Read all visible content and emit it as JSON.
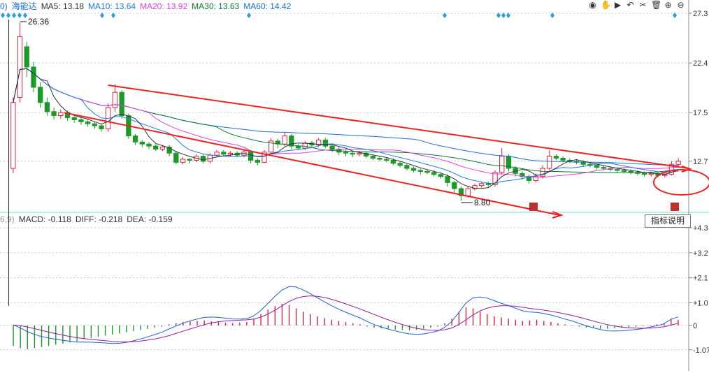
{
  "header": {
    "prefix": "0)",
    "stock_name": "海能达",
    "ma": [
      {
        "label": "MA5: 13.18",
        "color": "#333333"
      },
      {
        "label": "MA10: 13.64",
        "color": "#1a7ae8"
      },
      {
        "label": "MA20: 13.92",
        "color": "#e040e0"
      },
      {
        "label": "MA30: 13.63",
        "color": "#0a7a32"
      },
      {
        "label": "MA60: 14.42",
        "color": "#1a6fd6"
      }
    ],
    "toolbar": [
      {
        "name": "eye-icon",
        "glyph": "◉"
      },
      {
        "name": "hand-icon",
        "glyph": "✋"
      },
      {
        "name": "play-icon",
        "glyph": "▶"
      },
      {
        "name": "undo-icon",
        "glyph": "↶"
      },
      {
        "name": "scissors-icon",
        "glyph": "✂"
      },
      {
        "name": "trash-icon",
        "glyph": "🗑"
      },
      {
        "name": "zoom-in-icon",
        "glyph": "⊕"
      },
      {
        "name": "zoom-out-icon",
        "glyph": "⊖"
      }
    ]
  },
  "macd_header": {
    "prefix": "6,9)",
    "items": [
      {
        "label": "MACD: -0.118",
        "color": "#333333"
      },
      {
        "label": "DIFF: -0.218",
        "color": "#333333"
      },
      {
        "label": "DEA: -0.159",
        "color": "#333333"
      }
    ]
  },
  "tooltip": "指标说明",
  "chart_data": {
    "type": "candlestick",
    "price_axis": {
      "ticks": [
        "27.3",
        "22.4",
        "17.5",
        "12.7"
      ],
      "values": [
        27.3,
        22.4,
        17.5,
        12.7
      ],
      "range": [
        7.8,
        27.3
      ]
    },
    "macd_axis": {
      "ticks": [
        "+4.3",
        "+3.2",
        "+2.1",
        "+1.0",
        "0",
        "-1.07"
      ],
      "values": [
        4.3,
        3.2,
        2.1,
        1.0,
        0,
        -1.07
      ],
      "range": [
        -1.6,
        4.3
      ]
    },
    "annotations": {
      "high_label": "26.36",
      "low_label": "8.80"
    },
    "diamond_markers_x": [
      4,
      12,
      20,
      28,
      36,
      146,
      162,
      356,
      636,
      713,
      720,
      727,
      790,
      965
    ],
    "candles": [
      [
        12.0,
        18.5,
        11.5,
        19.0
      ],
      [
        19.0,
        25.0,
        18.5,
        26.36
      ],
      [
        24.0,
        22.0,
        21.0,
        24.5
      ],
      [
        22.0,
        20.0,
        19.5,
        22.5
      ],
      [
        20.0,
        18.5,
        18.0,
        20.5
      ],
      [
        18.5,
        17.6,
        17.2,
        19.0
      ],
      [
        17.6,
        17.2,
        16.8,
        18.0
      ],
      [
        17.2,
        17.5,
        16.9,
        17.8
      ],
      [
        17.5,
        17.0,
        16.7,
        17.7
      ],
      [
        17.0,
        16.8,
        16.5,
        17.2
      ],
      [
        16.8,
        16.6,
        16.3,
        17.0
      ],
      [
        16.6,
        16.4,
        16.1,
        16.8
      ],
      [
        16.4,
        16.2,
        15.9,
        16.6
      ],
      [
        16.2,
        15.9,
        15.6,
        16.4
      ],
      [
        15.9,
        18.0,
        15.6,
        18.4
      ],
      [
        18.0,
        19.5,
        17.6,
        20.3
      ],
      [
        19.5,
        17.2,
        16.9,
        19.7
      ],
      [
        17.2,
        15.2,
        14.9,
        17.4
      ],
      [
        15.2,
        14.6,
        14.3,
        15.4
      ],
      [
        14.6,
        14.4,
        14.1,
        14.8
      ],
      [
        14.4,
        14.2,
        13.9,
        14.6
      ],
      [
        14.2,
        13.9,
        13.7,
        14.4
      ],
      [
        13.9,
        14.1,
        13.7,
        14.3
      ],
      [
        14.1,
        13.5,
        13.2,
        14.3
      ],
      [
        13.5,
        12.6,
        12.4,
        13.7
      ],
      [
        12.6,
        12.9,
        12.4,
        13.1
      ],
      [
        12.9,
        12.8,
        12.5,
        13.0
      ],
      [
        12.8,
        13.2,
        12.6,
        13.4
      ],
      [
        13.2,
        12.7,
        12.5,
        13.4
      ],
      [
        12.7,
        13.3,
        12.5,
        13.5
      ],
      [
        13.3,
        13.6,
        13.1,
        13.8
      ],
      [
        13.6,
        13.4,
        13.2,
        13.8
      ],
      [
        13.4,
        13.5,
        13.2,
        13.7
      ],
      [
        13.5,
        13.3,
        13.1,
        13.7
      ],
      [
        13.3,
        13.6,
        13.1,
        13.8
      ],
      [
        13.6,
        12.8,
        12.5,
        13.8
      ],
      [
        12.8,
        12.6,
        12.3,
        13.0
      ],
      [
        12.6,
        13.6,
        12.5,
        13.8
      ],
      [
        13.6,
        14.7,
        13.4,
        15.0
      ],
      [
        14.7,
        14.4,
        14.0,
        14.9
      ],
      [
        14.4,
        15.2,
        14.2,
        15.6
      ],
      [
        15.2,
        14.2,
        13.9,
        15.4
      ],
      [
        14.2,
        14.0,
        13.8,
        14.4
      ],
      [
        14.0,
        14.5,
        13.8,
        14.7
      ],
      [
        14.5,
        14.3,
        14.0,
        14.7
      ],
      [
        14.3,
        14.8,
        14.1,
        15.0
      ],
      [
        14.8,
        14.2,
        14.0,
        15.0
      ],
      [
        14.2,
        13.9,
        13.6,
        14.4
      ],
      [
        13.9,
        13.6,
        13.3,
        14.1
      ],
      [
        13.6,
        13.5,
        13.2,
        13.8
      ],
      [
        13.5,
        13.4,
        13.1,
        13.7
      ],
      [
        13.4,
        13.5,
        13.2,
        13.7
      ],
      [
        13.5,
        13.2,
        13.0,
        13.7
      ],
      [
        13.2,
        13.0,
        12.8,
        13.4
      ],
      [
        13.0,
        12.9,
        12.7,
        13.2
      ],
      [
        12.9,
        12.8,
        12.6,
        13.1
      ],
      [
        12.8,
        12.5,
        12.3,
        13.0
      ],
      [
        12.5,
        12.3,
        12.1,
        12.7
      ],
      [
        12.3,
        12.0,
        11.8,
        12.5
      ],
      [
        12.0,
        11.8,
        11.6,
        12.2
      ],
      [
        11.8,
        11.7,
        11.4,
        12.0
      ],
      [
        11.7,
        11.6,
        11.4,
        11.9
      ],
      [
        11.6,
        11.4,
        11.2,
        11.8
      ],
      [
        11.4,
        11.2,
        11.0,
        11.6
      ],
      [
        11.2,
        10.6,
        10.2,
        11.4
      ],
      [
        10.6,
        10.0,
        9.6,
        10.8
      ],
      [
        10.0,
        9.3,
        8.8,
        10.2
      ],
      [
        9.3,
        10.0,
        9.1,
        10.3
      ],
      [
        10.0,
        10.3,
        9.8,
        10.5
      ],
      [
        10.3,
        10.5,
        10.1,
        10.7
      ],
      [
        10.5,
        10.4,
        10.2,
        10.7
      ],
      [
        10.4,
        11.6,
        10.2,
        11.8
      ],
      [
        11.6,
        13.2,
        11.4,
        14.0
      ],
      [
        13.2,
        12.0,
        11.7,
        13.4
      ],
      [
        12.0,
        11.5,
        11.2,
        12.2
      ],
      [
        11.5,
        11.2,
        10.9,
        11.7
      ],
      [
        11.2,
        10.8,
        10.5,
        11.4
      ],
      [
        10.8,
        11.2,
        10.6,
        11.5
      ],
      [
        11.2,
        12.0,
        11.0,
        12.3
      ],
      [
        12.0,
        13.2,
        11.8,
        13.8
      ],
      [
        13.2,
        13.0,
        12.8,
        13.4
      ],
      [
        13.0,
        12.8,
        12.6,
        13.2
      ],
      [
        12.8,
        12.7,
        12.5,
        13.0
      ],
      [
        12.7,
        12.6,
        12.4,
        12.9
      ],
      [
        12.6,
        12.4,
        12.2,
        12.8
      ],
      [
        12.4,
        12.3,
        12.1,
        12.6
      ],
      [
        12.3,
        12.1,
        11.9,
        12.5
      ],
      [
        12.1,
        12.0,
        11.8,
        12.3
      ],
      [
        12.0,
        11.9,
        11.7,
        12.2
      ],
      [
        11.9,
        11.8,
        11.6,
        12.1
      ],
      [
        11.8,
        11.7,
        11.5,
        12.0
      ],
      [
        11.7,
        11.6,
        11.4,
        11.9
      ],
      [
        11.6,
        11.5,
        11.3,
        11.8
      ],
      [
        11.5,
        11.4,
        11.2,
        11.7
      ],
      [
        11.4,
        11.5,
        11.2,
        11.7
      ],
      [
        11.5,
        11.3,
        11.1,
        11.7
      ],
      [
        11.3,
        11.4,
        11.1,
        11.6
      ],
      [
        11.4,
        12.4,
        11.3,
        12.7
      ],
      [
        12.4,
        12.7,
        12.2,
        13.0
      ]
    ],
    "macd_bars": [
      -0.9,
      -1.0,
      -1.05,
      -1.0,
      -0.95,
      -0.9,
      -0.85,
      -0.8,
      -0.75,
      -0.7,
      -0.6,
      -0.55,
      -0.5,
      -0.45,
      -0.4,
      -0.35,
      -0.3,
      -0.25,
      -0.2,
      -0.15,
      -0.1,
      -0.05,
      0.05,
      0.1,
      0.15,
      0.18,
      0.2,
      0.22,
      0.18,
      0.15,
      0.12,
      0.1,
      0.12,
      0.15,
      0.3,
      0.5,
      0.7,
      0.85,
      0.95,
      0.9,
      0.75,
      0.6,
      0.5,
      0.4,
      0.32,
      0.25,
      0.2,
      0.15,
      0.1,
      0.05,
      -0.05,
      -0.1,
      -0.12,
      -0.15,
      -0.18,
      -0.2,
      -0.22,
      -0.2,
      -0.15,
      -0.1,
      -0.05,
      0.1,
      0.3,
      0.6,
      0.8,
      0.75,
      0.6,
      0.5,
      0.4,
      0.35,
      0.3,
      0.25,
      0.2,
      0.22,
      0.25,
      0.2,
      0.15,
      0.1,
      0.05,
      0.02,
      -0.05,
      -0.1,
      -0.12,
      -0.15,
      -0.15,
      -0.12,
      -0.1,
      -0.08,
      -0.05,
      -0.03,
      0.02,
      0.05,
      0.1,
      0.3,
      0.25
    ]
  }
}
